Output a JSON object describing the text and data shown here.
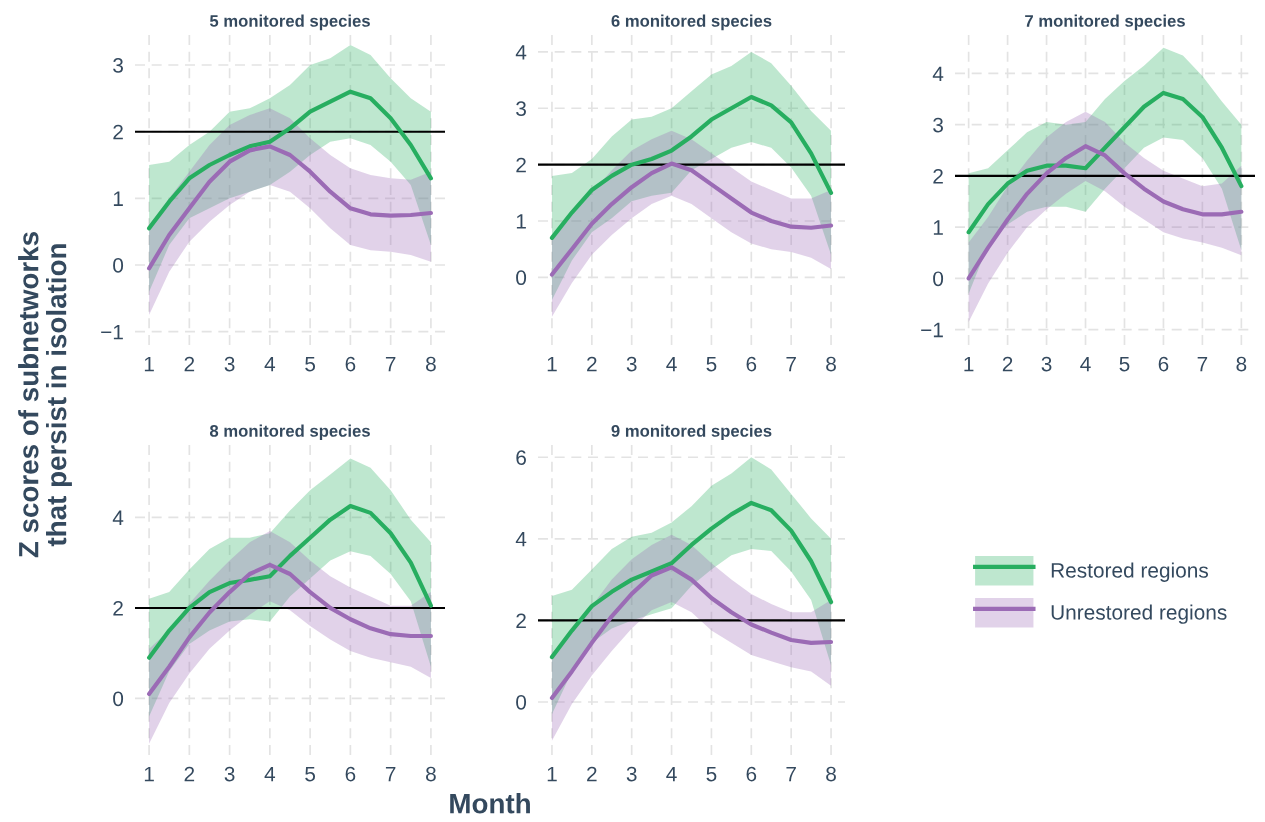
{
  "chart_data": [
    {
      "type": "line",
      "title": "5 monitored species",
      "ylabel": "Z scores of subnetworks\nthat persist in isolation",
      "legend": "right",
      "grid": true,
      "line_style": "solid",
      "marker": "none",
      "x": [
        1,
        1.5,
        2,
        2.5,
        3,
        3.5,
        4,
        4.5,
        5,
        5.5,
        6,
        6.5,
        7,
        7.5,
        8
      ],
      "xlim": [
        0.65,
        8.35
      ],
      "xticks": [
        1,
        2,
        3,
        4,
        5,
        6,
        7,
        8
      ],
      "ylim": [
        -1.2,
        3.45
      ],
      "yticks": [
        {
          "value": -1,
          "label": "−1"
        },
        0,
        1,
        2,
        3
      ],
      "ref_lines": [
        {
          "axis": "y",
          "value": 2,
          "color": "#000000"
        }
      ],
      "series": [
        {
          "name": "Restored regions",
          "color": "#27ae60",
          "values": [
            0.55,
            0.95,
            1.3,
            1.5,
            1.65,
            1.78,
            1.85,
            2.05,
            2.3,
            2.45,
            2.6,
            2.5,
            2.2,
            1.8,
            1.3
          ],
          "upper": [
            1.5,
            1.55,
            1.8,
            2.0,
            2.3,
            2.35,
            2.5,
            2.7,
            3.0,
            3.1,
            3.3,
            3.15,
            2.8,
            2.5,
            2.3
          ],
          "lower": [
            -0.4,
            0.3,
            0.7,
            0.85,
            1.0,
            1.1,
            1.2,
            1.4,
            1.65,
            1.85,
            1.9,
            1.8,
            1.55,
            1.2,
            0.3
          ]
        },
        {
          "name": "Unrestored regions",
          "color": "#9b6bb5",
          "values": [
            -0.05,
            0.45,
            0.85,
            1.25,
            1.55,
            1.72,
            1.78,
            1.65,
            1.4,
            1.1,
            0.85,
            0.76,
            0.74,
            0.75,
            0.78
          ],
          "upper": [
            0.6,
            1.0,
            1.4,
            1.8,
            2.1,
            2.25,
            2.35,
            2.2,
            1.9,
            1.65,
            1.45,
            1.35,
            1.3,
            1.28,
            1.4
          ],
          "lower": [
            -0.75,
            -0.1,
            0.35,
            0.65,
            0.9,
            1.1,
            1.2,
            1.1,
            0.85,
            0.55,
            0.3,
            0.22,
            0.2,
            0.15,
            0.05
          ]
        }
      ]
    },
    {
      "type": "line",
      "title": "6 monitored species",
      "grid": true,
      "line_style": "solid",
      "marker": "none",
      "x": [
        1,
        1.5,
        2,
        2.5,
        3,
        3.5,
        4,
        4.5,
        5,
        5.5,
        6,
        6.5,
        7,
        7.5,
        8
      ],
      "xlim": [
        0.65,
        8.35
      ],
      "xticks": [
        1,
        2,
        3,
        4,
        5,
        6,
        7,
        8
      ],
      "ylim": [
        -1.2,
        4.3
      ],
      "yticks": [
        0,
        1,
        2,
        3,
        4
      ],
      "ref_lines": [
        {
          "axis": "y",
          "value": 2,
          "color": "#000000"
        }
      ],
      "series": [
        {
          "name": "Restored regions",
          "color": "#27ae60",
          "values": [
            0.7,
            1.15,
            1.55,
            1.8,
            2.0,
            2.1,
            2.25,
            2.5,
            2.8,
            3.0,
            3.2,
            3.05,
            2.75,
            2.2,
            1.5
          ],
          "upper": [
            1.8,
            1.85,
            2.1,
            2.5,
            2.8,
            2.85,
            3.0,
            3.3,
            3.6,
            3.75,
            4.0,
            3.8,
            3.4,
            2.95,
            2.6
          ],
          "lower": [
            -0.4,
            0.3,
            0.8,
            1.05,
            1.35,
            1.45,
            1.5,
            1.9,
            2.1,
            2.3,
            2.4,
            2.3,
            1.95,
            1.45,
            0.4
          ]
        },
        {
          "name": "Unrestored regions",
          "color": "#9b6bb5",
          "values": [
            0.05,
            0.5,
            0.95,
            1.3,
            1.6,
            1.85,
            2.02,
            1.9,
            1.65,
            1.4,
            1.15,
            1.0,
            0.9,
            0.88,
            0.92
          ],
          "upper": [
            0.7,
            1.1,
            1.5,
            1.9,
            2.25,
            2.45,
            2.6,
            2.45,
            2.2,
            1.95,
            1.7,
            1.55,
            1.4,
            1.4,
            1.55
          ],
          "lower": [
            -0.7,
            -0.1,
            0.4,
            0.75,
            1.05,
            1.3,
            1.45,
            1.3,
            1.05,
            0.8,
            0.6,
            0.5,
            0.45,
            0.35,
            0.15
          ]
        }
      ]
    },
    {
      "type": "line",
      "title": "7 monitored species",
      "grid": true,
      "line_style": "solid",
      "marker": "none",
      "x": [
        1,
        1.5,
        2,
        2.5,
        3,
        3.5,
        4,
        4.5,
        5,
        5.5,
        6,
        6.5,
        7,
        7.5,
        8
      ],
      "xlim": [
        0.65,
        8.35
      ],
      "xticks": [
        1,
        2,
        3,
        4,
        5,
        6,
        7,
        8
      ],
      "ylim": [
        -1.3,
        4.75
      ],
      "yticks": [
        {
          "value": -1,
          "label": "−1"
        },
        0,
        1,
        2,
        3,
        4
      ],
      "ref_lines": [
        {
          "axis": "y",
          "value": 2,
          "color": "#000000"
        }
      ],
      "series": [
        {
          "name": "Restored regions",
          "color": "#27ae60",
          "values": [
            0.9,
            1.45,
            1.85,
            2.1,
            2.2,
            2.2,
            2.15,
            2.55,
            2.95,
            3.35,
            3.62,
            3.5,
            3.15,
            2.55,
            1.8
          ],
          "upper": [
            2.05,
            2.15,
            2.5,
            2.85,
            3.05,
            3.0,
            3.05,
            3.5,
            3.85,
            4.15,
            4.5,
            4.35,
            3.95,
            3.45,
            3.0
          ],
          "lower": [
            -0.3,
            0.65,
            1.05,
            1.3,
            1.4,
            1.4,
            1.3,
            1.75,
            2.15,
            2.55,
            2.75,
            2.7,
            2.35,
            1.75,
            0.55
          ]
        },
        {
          "name": "Unrestored regions",
          "color": "#9b6bb5",
          "values": [
            0.0,
            0.6,
            1.15,
            1.65,
            2.05,
            2.35,
            2.58,
            2.4,
            2.05,
            1.75,
            1.5,
            1.35,
            1.25,
            1.25,
            1.3
          ],
          "upper": [
            0.7,
            1.2,
            1.8,
            2.3,
            2.75,
            3.05,
            3.25,
            3.05,
            2.65,
            2.35,
            2.1,
            1.95,
            1.8,
            1.85,
            2.2
          ],
          "lower": [
            -0.85,
            -0.1,
            0.5,
            1.0,
            1.35,
            1.65,
            1.9,
            1.7,
            1.4,
            1.15,
            0.9,
            0.78,
            0.7,
            0.6,
            0.45
          ]
        }
      ]
    },
    {
      "type": "line",
      "title": "8 monitored species",
      "grid": true,
      "line_style": "solid",
      "marker": "none",
      "x": [
        1,
        1.5,
        2,
        2.5,
        3,
        3.5,
        4,
        4.5,
        5,
        5.5,
        6,
        6.5,
        7,
        7.5,
        8
      ],
      "xlim": [
        0.65,
        8.35
      ],
      "xticks": [
        1,
        2,
        3,
        4,
        5,
        6,
        7,
        8
      ],
      "ylim": [
        -1.25,
        5.6
      ],
      "yticks": [
        0,
        2,
        4
      ],
      "ref_lines": [
        {
          "axis": "y",
          "value": 2,
          "color": "#000000"
        }
      ],
      "series": [
        {
          "name": "Restored regions",
          "color": "#27ae60",
          "values": [
            0.9,
            1.5,
            2.0,
            2.35,
            2.55,
            2.62,
            2.7,
            3.15,
            3.55,
            3.95,
            4.25,
            4.1,
            3.65,
            3.0,
            2.05
          ],
          "upper": [
            2.2,
            2.35,
            2.85,
            3.3,
            3.55,
            3.55,
            3.65,
            4.15,
            4.6,
            4.95,
            5.3,
            5.1,
            4.6,
            3.95,
            3.45
          ],
          "lower": [
            -0.4,
            0.6,
            1.2,
            1.5,
            1.7,
            1.75,
            1.7,
            2.25,
            2.65,
            3.05,
            3.25,
            3.15,
            2.75,
            2.15,
            0.7
          ]
        },
        {
          "name": "Unrestored regions",
          "color": "#9b6bb5",
          "values": [
            0.1,
            0.7,
            1.35,
            1.9,
            2.35,
            2.75,
            2.95,
            2.75,
            2.35,
            2.0,
            1.75,
            1.55,
            1.42,
            1.38,
            1.38
          ],
          "upper": [
            1.1,
            1.5,
            2.1,
            2.6,
            3.05,
            3.45,
            3.7,
            3.45,
            3.05,
            2.7,
            2.45,
            2.25,
            2.05,
            2.05,
            2.35
          ],
          "lower": [
            -1.0,
            -0.1,
            0.55,
            1.1,
            1.5,
            1.85,
            2.15,
            1.95,
            1.6,
            1.3,
            1.05,
            0.9,
            0.8,
            0.7,
            0.45
          ]
        }
      ]
    },
    {
      "type": "line",
      "title": "9 monitored species",
      "xlabel": "Month",
      "grid": true,
      "line_style": "solid",
      "marker": "none",
      "x": [
        1,
        1.5,
        2,
        2.5,
        3,
        3.5,
        4,
        4.5,
        5,
        5.5,
        6,
        6.5,
        7,
        7.5,
        8
      ],
      "xlim": [
        0.65,
        8.35
      ],
      "xticks": [
        1,
        2,
        3,
        4,
        5,
        6,
        7,
        8
      ],
      "ylim": [
        -1.3,
        6.3
      ],
      "yticks": [
        0,
        2,
        4,
        6
      ],
      "ref_lines": [
        {
          "axis": "y",
          "value": 2,
          "color": "#000000"
        }
      ],
      "series": [
        {
          "name": "Restored regions",
          "color": "#27ae60",
          "values": [
            1.1,
            1.75,
            2.35,
            2.7,
            3.0,
            3.2,
            3.4,
            3.85,
            4.25,
            4.6,
            4.88,
            4.7,
            4.2,
            3.45,
            2.45
          ],
          "upper": [
            2.6,
            2.75,
            3.25,
            3.75,
            4.05,
            4.15,
            4.4,
            4.8,
            5.3,
            5.6,
            6.0,
            5.7,
            5.1,
            4.5,
            4.0
          ],
          "lower": [
            -0.3,
            0.75,
            1.45,
            1.8,
            2.0,
            2.15,
            2.3,
            2.85,
            3.25,
            3.6,
            3.75,
            3.7,
            3.2,
            2.5,
            0.9
          ]
        },
        {
          "name": "Unrestored regions",
          "color": "#9b6bb5",
          "values": [
            0.1,
            0.75,
            1.45,
            2.1,
            2.65,
            3.1,
            3.3,
            3.0,
            2.55,
            2.2,
            1.9,
            1.7,
            1.52,
            1.45,
            1.47
          ],
          "upper": [
            1.2,
            1.7,
            2.35,
            3.0,
            3.5,
            3.85,
            4.1,
            3.85,
            3.4,
            3.0,
            2.65,
            2.4,
            2.2,
            2.2,
            2.5
          ],
          "lower": [
            -0.95,
            -0.05,
            0.65,
            1.25,
            1.8,
            2.25,
            2.45,
            2.2,
            1.75,
            1.45,
            1.15,
            1.0,
            0.85,
            0.75,
            0.4
          ]
        }
      ]
    }
  ]
}
